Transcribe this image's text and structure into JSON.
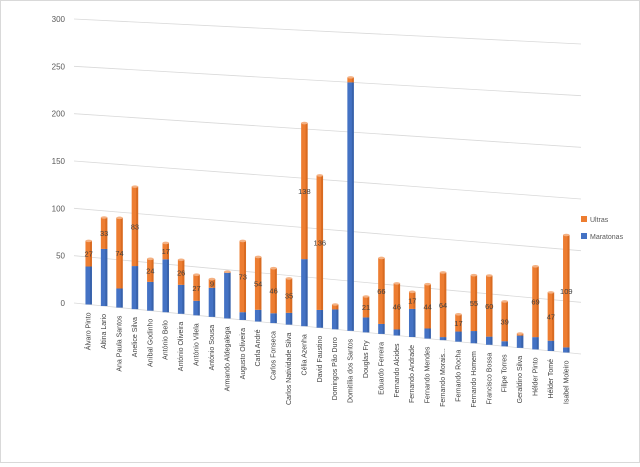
{
  "chart_data": {
    "type": "bar",
    "stacked": true,
    "title": "",
    "xlabel": "",
    "ylabel": "",
    "ylim": [
      0,
      300
    ],
    "yticks": [
      0,
      50,
      100,
      150,
      200,
      250,
      300
    ],
    "grid": true,
    "legend_position": "right",
    "categories": [
      "Álvaro Pinto",
      "Altina Lario",
      "Ana Paula Santos",
      "Anelice Silva",
      "Aníbal Godinho",
      "António Belo",
      "António Oliveira",
      "António Vilela",
      "António Sousa",
      "Armando Aldegalega",
      "Augusto Oliveira",
      "Carla André",
      "Carlos Fonseca",
      "Carlos Natividade Silva",
      "Célia Azenha",
      "David Faustino",
      "Domingos Pão Duro",
      "Domitília dos Santos",
      "Douglas Fry",
      "Eduardo Ferreira",
      "Fernando Alcides",
      "Fernando Andrade",
      "Fernando Mendes",
      "Fernando Morais...",
      "Fernando Rocha",
      "Fernando Homem",
      "Francisco Bossa",
      "Filipe Torres",
      "Geraldino Silva",
      "Hélder Pinto",
      "Hélder Tomé",
      "Isabel Moleiro"
    ],
    "series": [
      {
        "name": "Maratonas",
        "color": "#4472c4",
        "values": [
          40,
          60,
          20,
          45,
          30,
          55,
          30,
          15,
          30,
          47,
          8,
          12,
          10,
          12,
          68,
          18,
          20,
          250,
          15,
          10,
          6,
          28,
          10,
          3,
          10,
          12,
          8,
          5,
          12,
          12,
          10,
          5
        ]
      },
      {
        "name": "Ultras",
        "color": "#ed7d31",
        "values": [
          27,
          33,
          74,
          83,
          24,
          17,
          26,
          27,
          9,
          1,
          73,
          54,
          46,
          35,
          138,
          136,
          5,
          5,
          21,
          66,
          46,
          17,
          44,
          64,
          17,
          55,
          60,
          39,
          2,
          69,
          47,
          109
        ]
      }
    ],
    "data_labels": [
      "27",
      "33",
      "74",
      "83",
      "24",
      "17",
      "26",
      "27",
      "9",
      "",
      "73",
      "54",
      "46",
      "35",
      "138",
      "136",
      "",
      "",
      "21",
      "66",
      "46",
      "17",
      "44",
      "64",
      "17",
      "55",
      "60",
      "39",
      "",
      "69",
      "47",
      "109"
    ]
  }
}
